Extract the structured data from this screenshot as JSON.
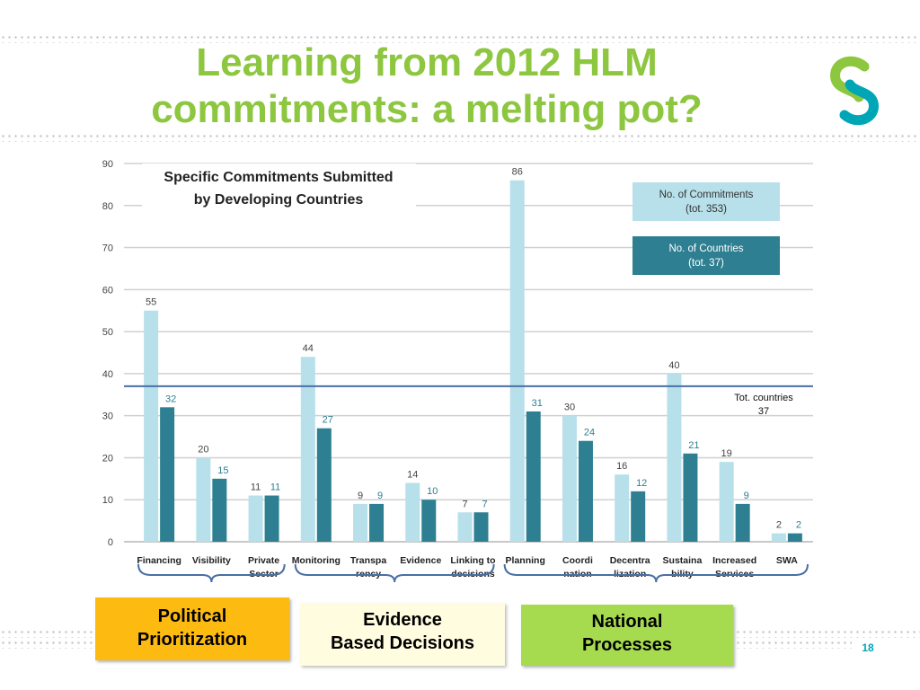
{
  "slide": {
    "title_line1": "Learning from 2012 HLM",
    "title_line2": "commitments: a melting pot?",
    "page_number": "18"
  },
  "groups": [
    {
      "line1": "Political",
      "line2": "Prioritization",
      "color": "#fdbb12"
    },
    {
      "line1": "Evidence",
      "line2": "Based Decisions",
      "color": "#fffce0"
    },
    {
      "line1": "National",
      "line2": "Processes",
      "color": "#a6db4f"
    }
  ],
  "chart_data": {
    "type": "bar",
    "title": "Specific Commitments Submitted by Developing  Countries",
    "title_line1": "Specific Commitments Submitted",
    "title_line2": "by Developing  Countries",
    "categories": [
      [
        "Financing"
      ],
      [
        "Visibility"
      ],
      [
        "Private",
        "Sector"
      ],
      [
        "Monitoring"
      ],
      [
        "Transpa",
        "rency"
      ],
      [
        "Evidence"
      ],
      [
        "Linking to",
        "decisions"
      ],
      [
        "Planning"
      ],
      [
        "Coordi",
        "nation"
      ],
      [
        "Decentra",
        "lization"
      ],
      [
        "Sustaina",
        "bility"
      ],
      [
        "Increased",
        "Services"
      ],
      [
        "SWA"
      ]
    ],
    "series": [
      {
        "name": "No. of Commitments (tot. 353)",
        "legend_line1": "No. of Commitments",
        "legend_line2": "(tot. 353)",
        "color": "#b7e0ea",
        "values": [
          55,
          20,
          11,
          44,
          9,
          14,
          7,
          86,
          30,
          16,
          40,
          19,
          2
        ]
      },
      {
        "name": "No. of Countries (tot. 37)",
        "legend_line1": "No. of Countries",
        "legend_line2": "(tot. 37)",
        "color": "#2e7f91",
        "values": [
          32,
          15,
          11,
          27,
          9,
          10,
          7,
          31,
          24,
          12,
          21,
          9,
          2
        ]
      }
    ],
    "yticks": [
      0,
      10,
      20,
      30,
      40,
      50,
      60,
      70,
      80,
      90
    ],
    "ylim": [
      0,
      90
    ],
    "grid": true,
    "legend_position": "top-right",
    "reference_line": {
      "value": 37,
      "label_line1": "Tot. countries",
      "label_line2": "37",
      "color": "#4a6fa5"
    }
  }
}
